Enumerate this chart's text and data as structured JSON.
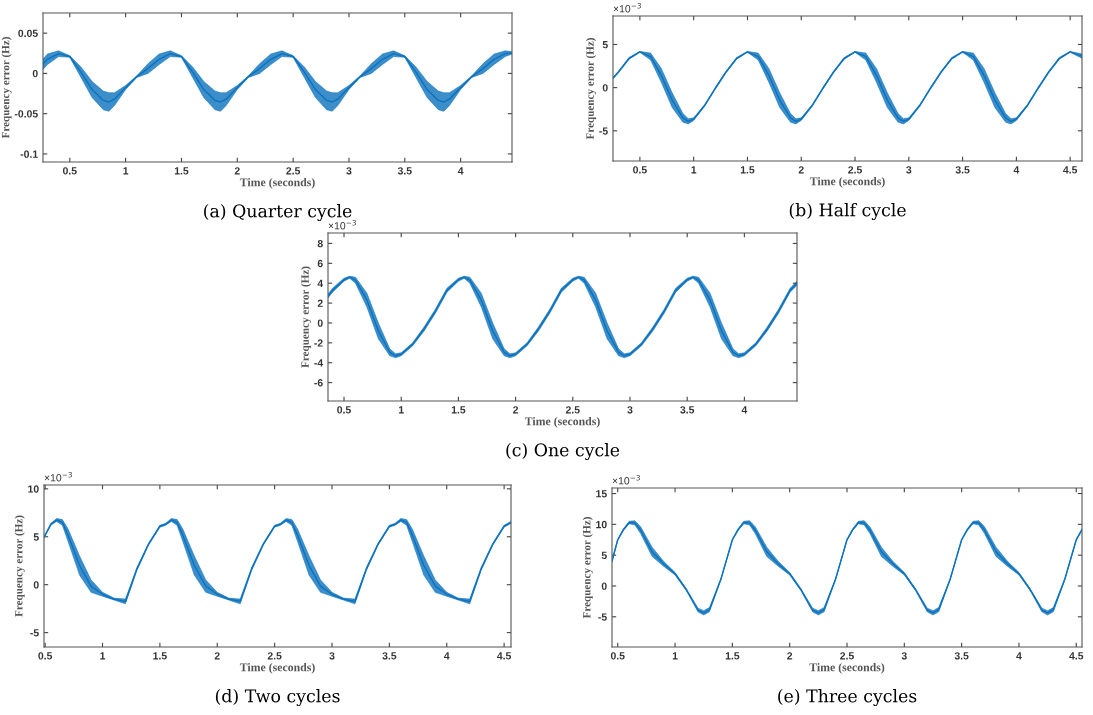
{
  "chart_data": [
    {
      "type": "line",
      "title": "(a) Quarter cycle",
      "xlabel": "Time (seconds)",
      "ylabel": "Frequency error (Hz)",
      "xlim": [
        0.26,
        4.46
      ],
      "xticks": [
        0.5,
        1,
        1.5,
        2,
        2.5,
        3,
        3.5,
        4
      ],
      "ylim": [
        -0.11,
        0.075
      ],
      "yticks": [
        -0.1,
        -0.05,
        0,
        0.05
      ],
      "series": [
        {
          "color": "#0b72bd",
          "x": [
            0.26,
            0.3,
            0.4,
            0.5,
            0.6,
            0.7,
            0.8,
            0.85,
            0.9,
            1,
            1.1,
            1.2,
            1.3,
            1.4,
            1.5,
            1.6,
            1.7,
            1.8,
            1.85,
            1.9,
            2,
            2.1,
            2.2,
            2.3,
            2.4,
            2.5,
            2.6,
            2.7,
            2.8,
            2.85,
            2.9,
            3,
            3.1,
            3.2,
            3.3,
            3.4,
            3.5,
            3.6,
            3.7,
            3.8,
            3.85,
            3.9,
            4,
            4.1,
            4.2,
            4.3,
            4.4,
            4.46
          ],
          "values": [
            0.0115,
            0.0175,
            0.0245,
            0.021,
            0.0015,
            -0.02,
            -0.0335,
            -0.0355,
            -0.032,
            -0.0175,
            -0.004,
            0.006,
            0.0175,
            0.0245,
            0.021,
            0.0015,
            -0.02,
            -0.0335,
            -0.0355,
            -0.032,
            -0.0175,
            -0.004,
            0.006,
            0.0175,
            0.0245,
            0.021,
            0.0015,
            -0.02,
            -0.0335,
            -0.0355,
            -0.032,
            -0.0175,
            -0.004,
            0.006,
            0.0175,
            0.0245,
            0.021,
            0.0015,
            -0.02,
            -0.0335,
            -0.0355,
            -0.032,
            -0.0175,
            -0.004,
            0.006,
            0.0175,
            0.0245,
            0.0255
          ],
          "upper": [
            0.018,
            0.024,
            0.028,
            0.022,
            0.008,
            -0.01,
            -0.022,
            -0.024,
            -0.024,
            -0.015,
            -0.003,
            0.012,
            0.024,
            0.028,
            0.022,
            0.008,
            -0.01,
            -0.022,
            -0.024,
            -0.024,
            -0.015,
            -0.003,
            0.012,
            0.024,
            0.028,
            0.022,
            0.008,
            -0.01,
            -0.022,
            -0.024,
            -0.024,
            -0.015,
            -0.003,
            0.012,
            0.024,
            0.028,
            0.022,
            0.008,
            -0.01,
            -0.022,
            -0.024,
            -0.024,
            -0.015,
            -0.003,
            0.012,
            0.024,
            0.028,
            0.027
          ],
          "lower": [
            0.005,
            0.011,
            0.021,
            0.02,
            -0.005,
            -0.03,
            -0.045,
            -0.047,
            -0.04,
            -0.02,
            -0.005,
            0,
            0.011,
            0.021,
            0.02,
            -0.005,
            -0.03,
            -0.045,
            -0.047,
            -0.04,
            -0.02,
            -0.005,
            0,
            0.011,
            0.021,
            0.02,
            -0.005,
            -0.03,
            -0.045,
            -0.047,
            -0.04,
            -0.02,
            -0.005,
            0,
            0.011,
            0.021,
            0.02,
            -0.005,
            -0.03,
            -0.045,
            -0.047,
            -0.04,
            -0.02,
            -0.005,
            0,
            0.011,
            0.021,
            0.024
          ]
        }
      ]
    },
    {
      "type": "line",
      "title": "(b) Half cycle",
      "xlabel": "Time (seconds)",
      "ylabel": "Frequency error (Hz)",
      "annotations": [
        "×10$^{−3}$"
      ],
      "xlim": [
        0.25,
        4.61
      ],
      "xticks": [
        0.5,
        1,
        1.5,
        2,
        2.5,
        3,
        3.5,
        4,
        4.5
      ],
      "ylim": [
        -8.5,
        8.3
      ],
      "yticks": [
        -5,
        0,
        5
      ],
      "series": [
        {
          "color": "#0b72bd",
          "x": [
            0.25,
            0.3,
            0.4,
            0.5,
            0.6,
            0.7,
            0.8,
            0.9,
            0.95,
            1,
            1.1,
            1.2,
            1.3,
            1.4,
            1.5,
            1.6,
            1.7,
            1.8,
            1.9,
            1.95,
            2,
            2.1,
            2.2,
            2.3,
            2.4,
            2.5,
            2.6,
            2.7,
            2.8,
            2.9,
            2.95,
            3,
            3.1,
            3.2,
            3.3,
            3.4,
            3.5,
            3.6,
            3.7,
            3.8,
            3.9,
            3.95,
            4,
            4.1,
            4.2,
            4.3,
            4.4,
            4.5,
            4.61
          ],
          "values": [
            1.1,
            1.8,
            3.4,
            4.15,
            3.6,
            1.4,
            -1.45,
            -3.5,
            -3.9,
            -3.65,
            -2.1,
            -0.1,
            1.8,
            3.4,
            4.15,
            3.6,
            1.4,
            -1.45,
            -3.5,
            -3.9,
            -3.65,
            -2.1,
            -0.1,
            1.8,
            3.4,
            4.15,
            3.6,
            1.4,
            -1.45,
            -3.5,
            -3.9,
            -3.65,
            -2.1,
            -0.1,
            1.8,
            3.4,
            4.15,
            3.6,
            1.4,
            -1.45,
            -3.5,
            -3.9,
            -3.65,
            -2.1,
            -0.1,
            1.8,
            3.4,
            4.15,
            3.65
          ],
          "upper": [
            1.2,
            1.9,
            3.5,
            4.2,
            4.0,
            2.2,
            -0.6,
            -3.0,
            -3.6,
            -3.5,
            -2.0,
            0.0,
            1.9,
            3.5,
            4.2,
            4.0,
            2.2,
            -0.6,
            -3.0,
            -3.6,
            -3.5,
            -2.0,
            0.0,
            1.9,
            3.5,
            4.2,
            4.0,
            2.2,
            -0.6,
            -3.0,
            -3.6,
            -3.5,
            -2.0,
            0.0,
            1.9,
            3.5,
            4.2,
            4.0,
            2.2,
            -0.6,
            -3.0,
            -3.6,
            -3.5,
            -2.0,
            0.0,
            1.9,
            3.5,
            4.2,
            3.9
          ],
          "lower": [
            1.0,
            1.7,
            3.3,
            4.1,
            3.2,
            0.6,
            -2.3,
            -4.0,
            -4.2,
            -3.8,
            -2.2,
            -0.2,
            1.7,
            3.3,
            4.1,
            3.2,
            0.6,
            -2.3,
            -4.0,
            -4.2,
            -3.8,
            -2.2,
            -0.2,
            1.7,
            3.3,
            4.1,
            3.2,
            0.6,
            -2.3,
            -4.0,
            -4.2,
            -3.8,
            -2.2,
            -0.2,
            1.7,
            3.3,
            4.1,
            3.2,
            0.6,
            -2.3,
            -4.0,
            -4.2,
            -3.8,
            -2.2,
            -0.2,
            1.7,
            3.3,
            4.1,
            3.4
          ]
        }
      ]
    },
    {
      "type": "line",
      "title": "(c) One cycle",
      "xlabel": "Time (seconds)",
      "ylabel": "Frequency error (Hz)",
      "annotations": [
        "×10$^{−3}$"
      ],
      "xlim": [
        0.36,
        4.46
      ],
      "xticks": [
        0.5,
        1,
        1.5,
        2,
        2.5,
        3,
        3.5,
        4
      ],
      "ylim": [
        -7.85,
        9.05
      ],
      "yticks": [
        -6,
        -4,
        -2,
        0,
        2,
        4,
        6,
        8
      ],
      "series": [
        {
          "color": "#0b72bd",
          "x": [
            0.36,
            0.4,
            0.5,
            0.55,
            0.6,
            0.7,
            0.8,
            0.9,
            0.95,
            1,
            1.1,
            1.2,
            1.3,
            1.4,
            1.5,
            1.55,
            1.6,
            1.7,
            1.8,
            1.9,
            1.95,
            2,
            2.1,
            2.2,
            2.3,
            2.4,
            2.5,
            2.55,
            2.6,
            2.7,
            2.8,
            2.9,
            2.95,
            3,
            3.1,
            3.2,
            3.3,
            3.4,
            3.5,
            3.55,
            3.6,
            3.7,
            3.8,
            3.9,
            3.95,
            4,
            4.1,
            4.2,
            4.3,
            4.4,
            4.46
          ],
          "values": [
            2.7,
            3.3,
            4.35,
            4.6,
            4.3,
            2.3,
            -0.8,
            -2.95,
            -3.3,
            -3.15,
            -2.15,
            -0.6,
            1.2,
            3.3,
            4.35,
            4.6,
            4.3,
            2.3,
            -0.8,
            -2.95,
            -3.3,
            -3.15,
            -2.15,
            -0.6,
            1.2,
            3.3,
            4.35,
            4.6,
            4.3,
            2.3,
            -0.8,
            -2.95,
            -3.3,
            -3.15,
            -2.15,
            -0.6,
            1.2,
            3.3,
            4.35,
            4.6,
            4.3,
            2.3,
            -0.8,
            -2.95,
            -3.3,
            -3.15,
            -2.15,
            -0.6,
            1.2,
            3.3,
            4.0
          ],
          "upper": [
            2.9,
            3.5,
            4.5,
            4.7,
            4.6,
            3.0,
            0.0,
            -2.6,
            -3.1,
            -3.0,
            -2.0,
            -0.4,
            1.4,
            3.5,
            4.5,
            4.7,
            4.6,
            3.0,
            0.0,
            -2.6,
            -3.1,
            -3.0,
            -2.0,
            -0.4,
            1.4,
            3.5,
            4.5,
            4.7,
            4.6,
            3.0,
            0.0,
            -2.6,
            -3.1,
            -3.0,
            -2.0,
            -0.4,
            1.4,
            3.5,
            4.5,
            4.7,
            4.6,
            3.0,
            0.0,
            -2.6,
            -3.1,
            -3.0,
            -2.0,
            -0.4,
            1.4,
            3.5,
            4.2
          ],
          "lower": [
            2.5,
            3.1,
            4.2,
            4.5,
            4.0,
            1.6,
            -1.6,
            -3.3,
            -3.5,
            -3.3,
            -2.3,
            -0.8,
            1.0,
            3.1,
            4.2,
            4.5,
            4.0,
            1.6,
            -1.6,
            -3.3,
            -3.5,
            -3.3,
            -2.3,
            -0.8,
            1.0,
            3.1,
            4.2,
            4.5,
            4.0,
            1.6,
            -1.6,
            -3.3,
            -3.5,
            -3.3,
            -2.3,
            -0.8,
            1.0,
            3.1,
            4.2,
            4.5,
            4.0,
            1.6,
            -1.6,
            -3.3,
            -3.5,
            -3.3,
            -2.3,
            -0.8,
            1.0,
            3.1,
            3.8
          ]
        }
      ]
    },
    {
      "type": "line",
      "title": "(d) Two cycles",
      "xlabel": "Time (seconds)",
      "ylabel": "Frequency error (Hz)",
      "annotations": [
        "×10$^{−3}$"
      ],
      "xlim": [
        0.49,
        4.56
      ],
      "xticks": [
        0.5,
        1,
        1.5,
        2,
        2.5,
        3,
        3.5,
        4,
        4.5
      ],
      "ylim": [
        -6.5,
        10.4
      ],
      "yticks": [
        -5,
        0,
        5,
        10
      ],
      "series": [
        {
          "color": "#0b72bd",
          "x": [
            0.49,
            0.55,
            0.6,
            0.65,
            0.7,
            0.8,
            0.9,
            1,
            1.1,
            1.2,
            1.3,
            1.4,
            1.5,
            1.55,
            1.6,
            1.65,
            1.7,
            1.8,
            1.9,
            2,
            2.1,
            2.2,
            2.3,
            2.4,
            2.5,
            2.55,
            2.6,
            2.65,
            2.7,
            2.8,
            2.9,
            3,
            3.1,
            3.2,
            3.3,
            3.4,
            3.5,
            3.55,
            3.6,
            3.65,
            3.7,
            3.8,
            3.9,
            4,
            4.1,
            4.2,
            4.3,
            4.4,
            4.5,
            4.56
          ],
          "values": [
            4.95,
            6.3,
            6.75,
            6.5,
            5.15,
            2.0,
            -0.15,
            -1.0,
            -1.5,
            -1.75,
            1.65,
            4.2,
            6.1,
            6.3,
            6.75,
            6.5,
            5.15,
            2.0,
            -0.15,
            -1.0,
            -1.5,
            -1.75,
            1.65,
            4.2,
            6.1,
            6.3,
            6.75,
            6.5,
            5.15,
            2.0,
            -0.15,
            -1.0,
            -1.5,
            -1.75,
            1.65,
            4.2,
            6.1,
            6.3,
            6.75,
            6.5,
            5.15,
            2.0,
            -0.15,
            -1.0,
            -1.5,
            -1.75,
            1.65,
            4.2,
            6.1,
            6.5
          ],
          "upper": [
            5.0,
            6.4,
            6.9,
            6.8,
            5.8,
            3.0,
            0.5,
            -0.8,
            -1.4,
            -1.5,
            1.8,
            4.3,
            6.2,
            6.4,
            6.9,
            6.8,
            5.8,
            3.0,
            0.5,
            -0.8,
            -1.4,
            -1.5,
            1.8,
            4.3,
            6.2,
            6.4,
            6.9,
            6.8,
            5.8,
            3.0,
            0.5,
            -0.8,
            -1.4,
            -1.5,
            1.8,
            4.3,
            6.2,
            6.4,
            6.9,
            6.8,
            5.8,
            3.0,
            0.5,
            -0.8,
            -1.4,
            -1.5,
            1.8,
            4.3,
            6.2,
            6.6
          ],
          "lower": [
            4.9,
            6.2,
            6.6,
            6.2,
            4.5,
            1.0,
            -0.8,
            -1.2,
            -1.6,
            -2.0,
            1.5,
            4.1,
            6.0,
            6.2,
            6.6,
            6.2,
            4.5,
            1.0,
            -0.8,
            -1.2,
            -1.6,
            -2.0,
            1.5,
            4.1,
            6.0,
            6.2,
            6.6,
            6.2,
            4.5,
            1.0,
            -0.8,
            -1.2,
            -1.6,
            -2.0,
            1.5,
            4.1,
            6.0,
            6.2,
            6.6,
            6.2,
            4.5,
            1.0,
            -0.8,
            -1.2,
            -1.6,
            -2.0,
            1.5,
            4.1,
            6.0,
            6.4
          ]
        }
      ]
    },
    {
      "type": "line",
      "title": "(e) Three cycles",
      "xlabel": "Time (seconds)",
      "ylabel": "Frequency error (Hz)",
      "annotations": [
        "×10$^{−3}$"
      ],
      "xlim": [
        0.45,
        4.55
      ],
      "xticks": [
        0.5,
        1,
        1.5,
        2,
        2.5,
        3,
        3.5,
        4,
        4.5
      ],
      "ylim": [
        -9.9,
        15.9
      ],
      "yticks": [
        -5,
        0,
        5,
        10,
        15
      ],
      "series": [
        {
          "color": "#0b72bd",
          "x": [
            0.45,
            0.5,
            0.55,
            0.6,
            0.65,
            0.7,
            0.8,
            0.9,
            1,
            1.1,
            1.2,
            1.25,
            1.3,
            1.4,
            1.5,
            1.55,
            1.6,
            1.65,
            1.7,
            1.8,
            1.9,
            2,
            2.1,
            2.2,
            2.25,
            2.3,
            2.4,
            2.5,
            2.55,
            2.6,
            2.65,
            2.7,
            2.8,
            2.9,
            3,
            3.1,
            3.2,
            3.25,
            3.3,
            3.4,
            3.5,
            3.55,
            3.6,
            3.65,
            3.7,
            3.8,
            3.9,
            4,
            4.1,
            4.2,
            4.25,
            4.3,
            4.4,
            4.5,
            4.55
          ],
          "values": [
            4.05,
            7.5,
            9.15,
            10.3,
            10.25,
            9.05,
            5.55,
            3.6,
            2.0,
            -0.65,
            -3.9,
            -4.35,
            -3.85,
            1.1,
            7.5,
            9.15,
            10.3,
            10.25,
            9.05,
            5.55,
            3.6,
            2.0,
            -0.65,
            -3.9,
            -4.35,
            -3.85,
            1.1,
            7.5,
            9.15,
            10.3,
            10.25,
            9.05,
            5.55,
            3.6,
            2.0,
            -0.65,
            -3.9,
            -4.35,
            -3.85,
            1.1,
            7.5,
            9.15,
            10.3,
            10.25,
            9.05,
            5.55,
            3.6,
            2.0,
            -0.65,
            -3.9,
            -4.35,
            -3.85,
            1.1,
            7.5,
            9.15
          ],
          "upper": [
            4.2,
            7.6,
            9.3,
            10.5,
            10.6,
            9.6,
            6.3,
            4.0,
            2.2,
            -0.5,
            -3.6,
            -4.0,
            -3.5,
            1.2,
            7.6,
            9.3,
            10.5,
            10.6,
            9.6,
            6.3,
            4.0,
            2.2,
            -0.5,
            -3.6,
            -4.0,
            -3.5,
            1.2,
            7.6,
            9.3,
            10.5,
            10.6,
            9.6,
            6.3,
            4.0,
            2.2,
            -0.5,
            -3.6,
            -4.0,
            -3.5,
            1.2,
            7.6,
            9.3,
            10.5,
            10.6,
            9.6,
            6.3,
            4.0,
            2.2,
            -0.5,
            -3.6,
            -4.0,
            -3.5,
            1.2,
            7.6,
            9.3
          ],
          "lower": [
            3.9,
            7.4,
            9.0,
            10.1,
            9.9,
            8.5,
            4.8,
            3.2,
            1.8,
            -0.8,
            -4.2,
            -4.7,
            -4.2,
            1.0,
            7.4,
            9.0,
            10.1,
            9.9,
            8.5,
            4.8,
            3.2,
            1.8,
            -0.8,
            -4.2,
            -4.7,
            -4.2,
            1.0,
            7.4,
            9.0,
            10.1,
            9.9,
            8.5,
            4.8,
            3.2,
            1.8,
            -0.8,
            -4.2,
            -4.7,
            -4.2,
            1.0,
            7.4,
            9.0,
            10.1,
            9.9,
            8.5,
            4.8,
            3.2,
            1.8,
            -0.8,
            -4.2,
            -4.7,
            -4.2,
            1.0,
            7.4,
            9.0
          ]
        }
      ]
    }
  ]
}
